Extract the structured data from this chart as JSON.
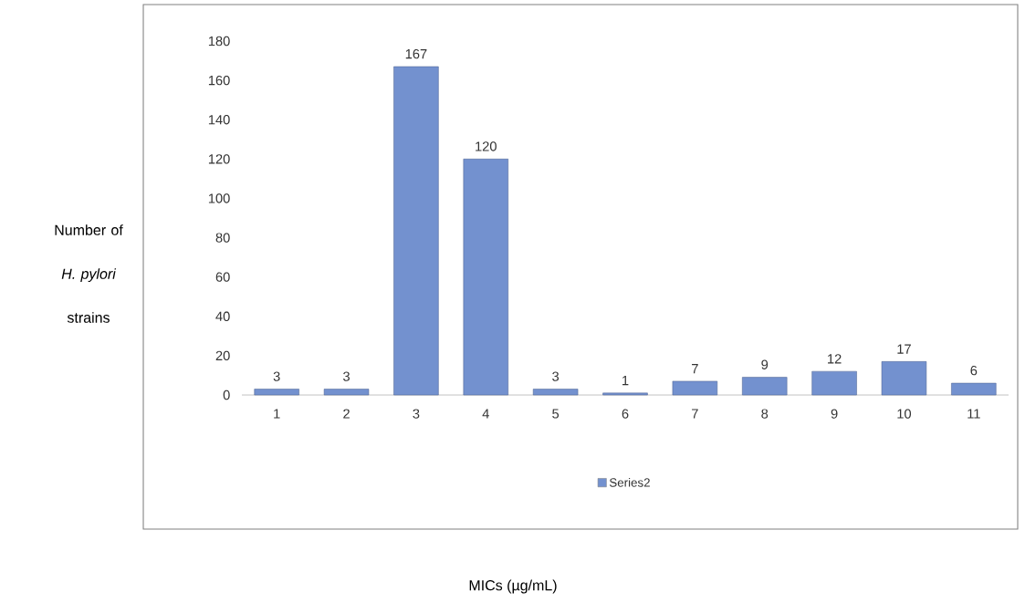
{
  "chart_data": {
    "type": "bar",
    "annotations": [
      "MICs (µg/mL)"
    ],
    "ylabel": "Number of *H. pylori* strains",
    "categories": [
      "1",
      "2",
      "3",
      "4",
      "5",
      "6",
      "7",
      "8",
      "9",
      "10",
      "11"
    ],
    "series": [
      {
        "name": "Series2",
        "color": "#7391cf",
        "values": [
          3,
          3,
          167,
          120,
          3,
          1,
          7,
          9,
          12,
          17,
          6
        ]
      }
    ],
    "ylim": [
      0,
      180
    ],
    "yticks": [
      0,
      20,
      40,
      60,
      80,
      100,
      120,
      140,
      160,
      180
    ],
    "legend": "bottom",
    "data_labels": true
  }
}
